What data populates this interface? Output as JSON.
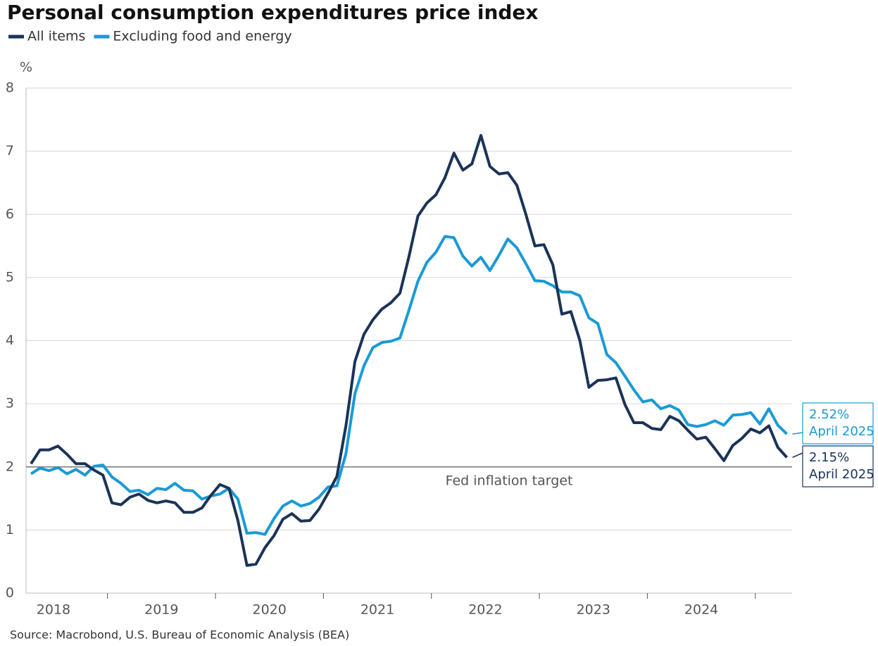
{
  "chart_data": {
    "type": "line",
    "title": "Personal consumption expenditures price index",
    "ylabel": "%",
    "source": "Source: Macrobond, U.S. Bureau of Economic Analysis (BEA)",
    "categories": [
      null,
      null,
      "2018",
      null,
      null,
      null,
      null,
      null,
      null,
      null,
      null,
      null,
      null,
      null,
      "2019",
      null,
      null,
      null,
      null,
      null,
      null,
      null,
      null,
      null,
      null,
      null,
      "2020",
      null,
      null,
      null,
      null,
      null,
      null,
      null,
      null,
      null,
      null,
      null,
      "2021",
      null,
      null,
      null,
      null,
      null,
      null,
      null,
      null,
      null,
      null,
      null,
      "2022",
      null,
      null,
      null,
      null,
      null,
      null,
      null,
      null,
      null,
      null,
      null,
      "2023",
      null,
      null,
      null,
      null,
      null,
      null,
      null,
      null,
      null,
      null,
      null,
      "2024",
      null,
      null,
      null,
      null,
      null,
      null,
      null,
      null,
      null,
      null
    ],
    "series": [
      {
        "name": "All items",
        "color": "#1b3358",
        "last_label": "2.15%",
        "last_date": "April 2025",
        "values": [
          2.05,
          2.27,
          2.27,
          2.33,
          2.2,
          2.05,
          2.05,
          1.95,
          1.87,
          1.43,
          1.4,
          1.52,
          1.57,
          1.47,
          1.43,
          1.46,
          1.43,
          1.28,
          1.28,
          1.35,
          1.55,
          1.72,
          1.66,
          1.15,
          0.44,
          0.46,
          0.72,
          0.91,
          1.17,
          1.26,
          1.14,
          1.15,
          1.33,
          1.58,
          1.85,
          2.65,
          3.67,
          4.1,
          4.33,
          4.5,
          4.6,
          4.75,
          5.33,
          5.97,
          6.18,
          6.31,
          6.58,
          6.97,
          6.7,
          6.8,
          7.25,
          6.76,
          6.64,
          6.66,
          6.46,
          6.0,
          5.5,
          5.52,
          5.2,
          4.42,
          4.46,
          4.0,
          3.26,
          3.37,
          3.38,
          3.41,
          2.99,
          2.7,
          2.7,
          2.61,
          2.59,
          2.8,
          2.73,
          2.58,
          2.44,
          2.47,
          2.29,
          2.1,
          2.34,
          2.45,
          2.6,
          2.54,
          2.65,
          2.31,
          2.15
        ]
      },
      {
        "name": "Excluding food and energy",
        "color": "#1a9ad6",
        "last_label": "2.52%",
        "last_date": "April 2025",
        "values": [
          1.89,
          1.98,
          1.94,
          1.99,
          1.89,
          1.96,
          1.87,
          2.01,
          2.03,
          1.84,
          1.74,
          1.61,
          1.63,
          1.56,
          1.66,
          1.64,
          1.74,
          1.63,
          1.62,
          1.49,
          1.54,
          1.57,
          1.66,
          1.49,
          0.95,
          0.96,
          0.93,
          1.18,
          1.38,
          1.46,
          1.38,
          1.42,
          1.52,
          1.68,
          1.7,
          2.21,
          3.16,
          3.6,
          3.89,
          3.97,
          3.99,
          4.04,
          4.48,
          4.94,
          5.24,
          5.4,
          5.65,
          5.63,
          5.34,
          5.18,
          5.32,
          5.11,
          5.35,
          5.61,
          5.47,
          5.22,
          4.95,
          4.94,
          4.87,
          4.77,
          4.77,
          4.71,
          4.36,
          4.27,
          3.78,
          3.65,
          3.44,
          3.22,
          3.03,
          3.06,
          2.92,
          2.97,
          2.9,
          2.67,
          2.64,
          2.67,
          2.73,
          2.66,
          2.82,
          2.83,
          2.86,
          2.68,
          2.92,
          2.66,
          2.52
        ]
      }
    ],
    "reference_line": {
      "value": 2,
      "label": "Fed inflation target"
    },
    "ylim": [
      0,
      8
    ],
    "yticks": [
      0,
      1,
      2,
      3,
      4,
      5,
      6,
      7,
      8
    ],
    "grid": true
  }
}
